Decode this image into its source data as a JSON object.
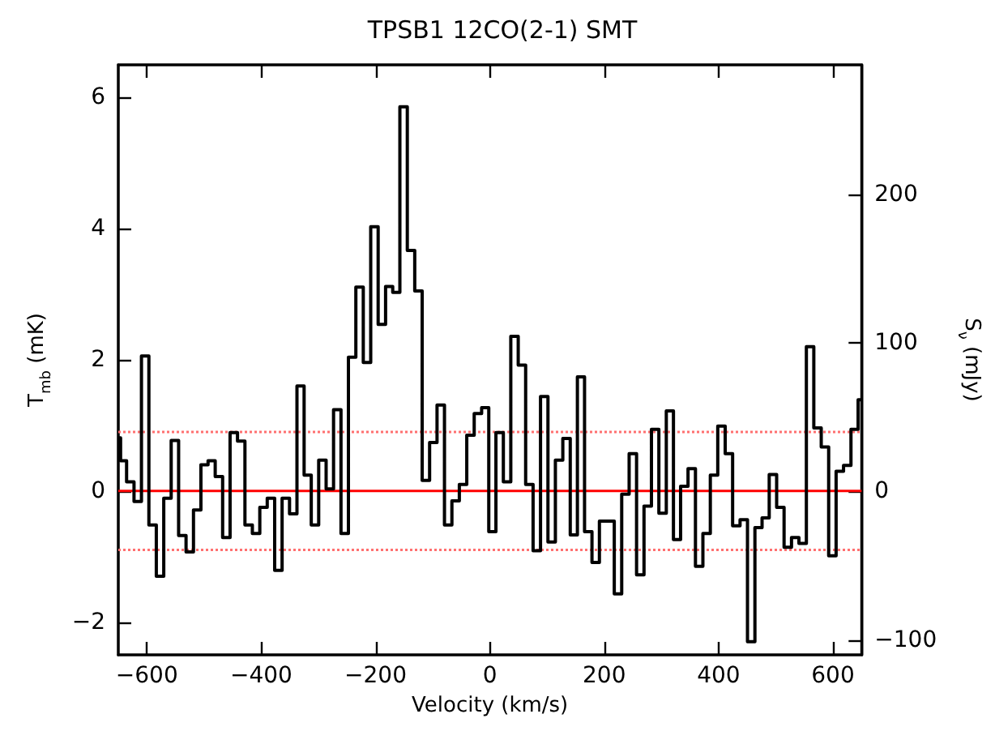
{
  "chart_data": {
    "type": "step",
    "title": "TPSB1 12CO(2-1) SMT",
    "xlabel": "Velocity (km/s)",
    "ylabel": "T$_{mb}$ (mK)",
    "y2label": "S$_{ν}$ (mJy)",
    "xlim": [
      -650,
      650
    ],
    "xticks": [
      -600,
      -400,
      -200,
      0,
      200,
      400,
      600
    ],
    "ylim": [
      -2.5,
      6.5
    ],
    "yticks": [
      -2,
      0,
      2,
      4,
      6
    ],
    "y2lim": [
      -110,
      287
    ],
    "y2ticks": [
      -100,
      0,
      100,
      200
    ],
    "x": [
      -650,
      -642,
      -629,
      -616,
      -603,
      -590,
      -577,
      -564,
      -551,
      -538,
      -525,
      -512,
      -499,
      -487,
      -474,
      -461,
      -448,
      -435,
      -422,
      -409,
      -396,
      -383,
      -370,
      -357,
      -344,
      -331,
      -319,
      -306,
      -293,
      -280,
      -267,
      -254,
      -241,
      -228,
      -215,
      -202,
      -189,
      -176,
      -164,
      -151,
      -138,
      -125,
      -112,
      -99,
      -86,
      -73,
      -60,
      -47,
      -34,
      -21,
      -8,
      4,
      17,
      30,
      43,
      56,
      69,
      82,
      95,
      108,
      121,
      134,
      147,
      159,
      172,
      185,
      198,
      211,
      224,
      237,
      250,
      263,
      276,
      289,
      302,
      315,
      327,
      340,
      353,
      366,
      379,
      392,
      405,
      418,
      431,
      444,
      457,
      470,
      482,
      495,
      508,
      521,
      534,
      547,
      560,
      573,
      586,
      599,
      612,
      625,
      638,
      650
    ],
    "series": [
      {
        "color": "#000000",
        "values": [
          0.81,
          0.46,
          0.14,
          -0.16,
          2.06,
          -0.52,
          -1.3,
          -0.11,
          0.77,
          -0.68,
          -0.93,
          -0.29,
          0.4,
          0.46,
          0.22,
          -0.71,
          0.89,
          0.76,
          -0.52,
          -0.65,
          -0.25,
          -0.11,
          -1.21,
          -0.11,
          -0.35,
          1.6,
          0.24,
          -0.52,
          0.47,
          0.03,
          1.24,
          -0.65,
          2.04,
          3.11,
          1.96,
          4.03,
          2.54,
          3.12,
          3.03,
          5.86,
          3.67,
          3.05,
          0.16,
          0.74,
          1.31,
          -0.52,
          -0.15,
          0.1,
          0.85,
          1.18,
          1.27,
          -0.62,
          0.89,
          0.14,
          2.36,
          1.92,
          0.1,
          -0.91,
          1.44,
          -0.78,
          0.47,
          0.8,
          -0.67,
          1.74,
          -0.62,
          -1.09,
          -0.46,
          -0.46,
          -1.57,
          -0.05,
          0.57,
          -1.28,
          -0.23,
          0.94,
          -0.34,
          1.22,
          -0.74,
          0.07,
          0.34,
          -1.15,
          -0.65,
          0.24,
          0.99,
          0.57,
          -0.53,
          -0.44,
          -2.3,
          -0.56,
          -0.41,
          0.25,
          -0.25,
          -0.86,
          -0.71,
          -0.8,
          2.2,
          0.96,
          0.67,
          -0.99,
          0.3,
          0.39,
          0.94,
          1.39
        ]
      }
    ],
    "ref_lines": [
      {
        "axis": "y",
        "value": 0,
        "color": "#ff0000",
        "line_style": "solid"
      },
      {
        "axis": "y",
        "value": 0.9,
        "color": "#ff7070",
        "line_style": "dotted"
      },
      {
        "axis": "y",
        "value": -0.9,
        "color": "#ff7070",
        "line_style": "dotted"
      }
    ],
    "marker": "none",
    "line_style": "solid"
  }
}
